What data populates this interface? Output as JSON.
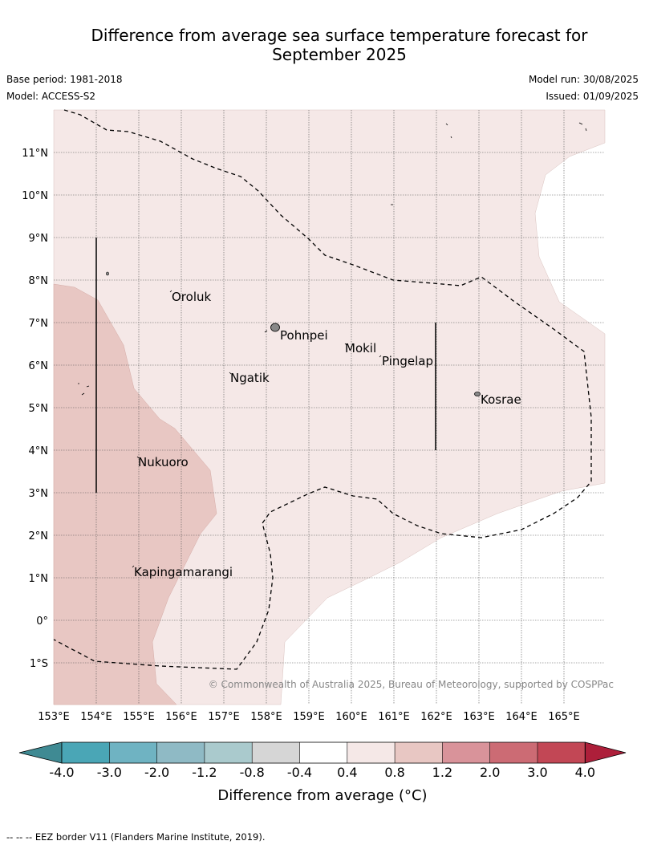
{
  "header": {
    "title_line1": "Difference from average sea surface temperature forecast for",
    "title_line2": "September 2025",
    "base_period": "Base period: 1981-2018",
    "model": "Model: ACCESS-S2",
    "model_run": "Model run: 30/08/2025",
    "issued": "Issued: 01/09/2025"
  },
  "map": {
    "lon_labels": [
      "153°E",
      "154°E",
      "155°E",
      "156°E",
      "157°E",
      "158°E",
      "159°E",
      "160°E",
      "161°E",
      "162°E",
      "163°E",
      "164°E",
      "165°E"
    ],
    "lat_labels": [
      "11°N",
      "10°N",
      "9°N",
      "8°N",
      "7°N",
      "6°N",
      "5°N",
      "4°N",
      "3°N",
      "2°N",
      "1°N",
      "0°",
      "1°S"
    ],
    "places": [
      "Oroluk",
      "Pohnpei",
      "Mokil",
      "Pingelap",
      "Ngatik",
      "Kosrae",
      "Nukuoro",
      "Kapingamarangi"
    ],
    "copyright": "© Commonwealth of Australia 2025, Bureau of Meteorology, supported by COSPPac",
    "colors": {
      "light_warm": "#f5e8e7",
      "medium_warm": "#e8c7c3",
      "land": "#888888"
    }
  },
  "legend": {
    "ticks": [
      "-4.0",
      "-3.0",
      "-2.0",
      "-1.2",
      "-0.8",
      "-0.4",
      "0.4",
      "0.8",
      "1.2",
      "2.0",
      "3.0",
      "4.0"
    ],
    "colors": [
      "#3f8a93",
      "#4aa6b6",
      "#6fb3c2",
      "#8fbac5",
      "#aacacd",
      "#d6d6d6",
      "#ffffff",
      "#f5e8e7",
      "#e8c7c3",
      "#d9939a",
      "#cc6b74",
      "#c24755",
      "#ad1f3a"
    ],
    "label": "Difference from average (°C)"
  },
  "footer": {
    "eez_note": "--  --  -- EEZ border V11 (Flanders Marine Institute, 2019)."
  }
}
